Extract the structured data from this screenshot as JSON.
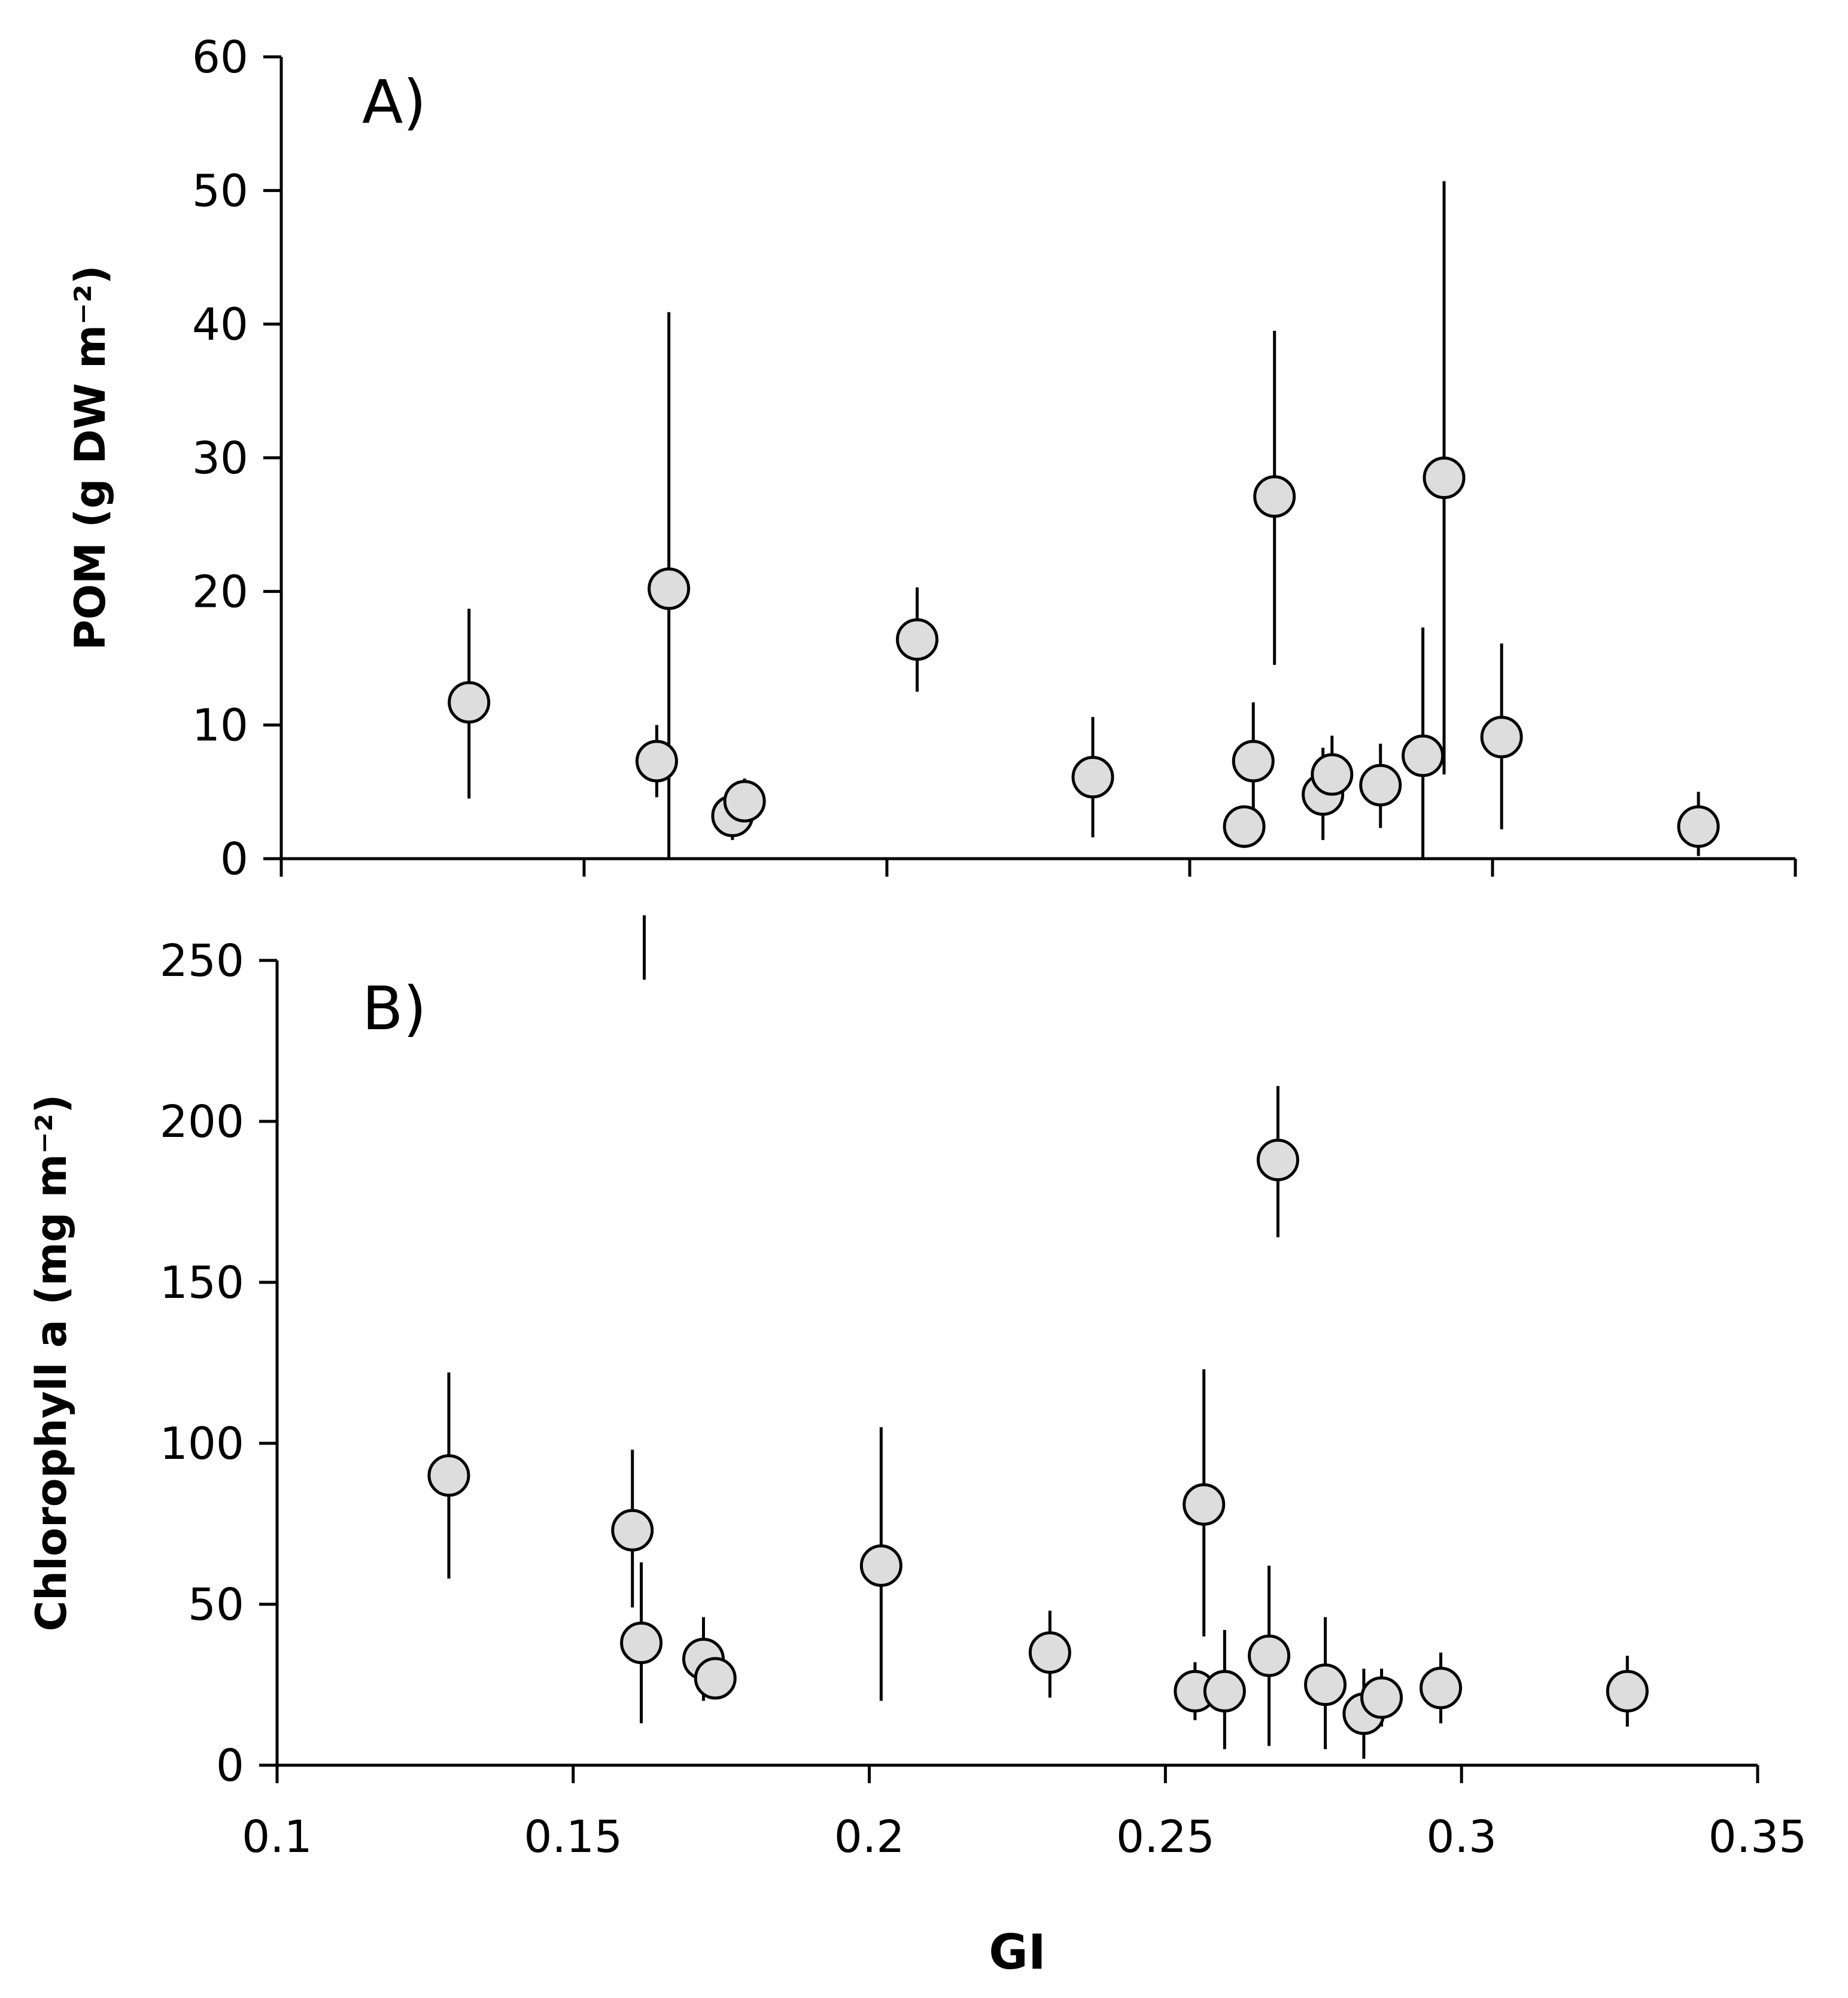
{
  "chart_data": [
    {
      "type": "scatter",
      "panel_label": "A)",
      "xlabel": "",
      "ylabel": "POM (g DW m⁻²)",
      "xlim": [
        0.1,
        0.35
      ],
      "ylim": [
        0,
        60
      ],
      "xticks": [
        0.1,
        0.15,
        0.2,
        0.25,
        0.3,
        0.35
      ],
      "yticks": [
        0,
        10,
        20,
        30,
        40,
        50,
        60
      ],
      "yticklabels": [
        "0",
        "10",
        "20",
        "30",
        "40",
        "50",
        "60"
      ],
      "show_xticklabels": false,
      "grid": false,
      "points": [
        {
          "x": 0.131,
          "y": 11.7,
          "lo": 4.5,
          "hi": 18.7
        },
        {
          "x": 0.162,
          "y": 7.3,
          "lo": 4.6,
          "hi": 10.0
        },
        {
          "x": 0.164,
          "y": 20.2,
          "lo": 0.0,
          "hi": 40.9
        },
        {
          "x": 0.1745,
          "y": 3.2,
          "lo": 1.4,
          "hi": 4.5
        },
        {
          "x": 0.1765,
          "y": 4.3,
          "lo": 3.2,
          "hi": 6.0
        },
        {
          "x": 0.205,
          "y": 16.4,
          "lo": 12.5,
          "hi": 20.3
        },
        {
          "x": 0.234,
          "y": 6.1,
          "lo": 1.6,
          "hi": 10.6
        },
        {
          "x": 0.259,
          "y": 2.4,
          "lo": 0.8,
          "hi": 3.6
        },
        {
          "x": 0.2605,
          "y": 7.3,
          "lo": 3.0,
          "hi": 11.7
        },
        {
          "x": 0.264,
          "y": 27.1,
          "lo": 14.5,
          "hi": 39.5
        },
        {
          "x": 0.272,
          "y": 4.8,
          "lo": 1.4,
          "hi": 8.3
        },
        {
          "x": 0.2735,
          "y": 6.3,
          "lo": 3.5,
          "hi": 9.2
        },
        {
          "x": 0.2815,
          "y": 5.5,
          "lo": 2.3,
          "hi": 8.6
        },
        {
          "x": 0.2885,
          "y": 7.7,
          "lo": 0.0,
          "hi": 17.3
        },
        {
          "x": 0.292,
          "y": 28.5,
          "lo": 6.3,
          "hi": 50.7
        },
        {
          "x": 0.3015,
          "y": 9.1,
          "lo": 2.2,
          "hi": 16.1
        },
        {
          "x": 0.334,
          "y": 2.4,
          "lo": 0.2,
          "hi": 5.0
        }
      ]
    },
    {
      "type": "scatter",
      "panel_label": "B)",
      "xlabel": "GI",
      "ylabel": "Chlorophyll a (mg m⁻²)",
      "xlim": [
        0.1,
        0.35
      ],
      "ylim": [
        0,
        250
      ],
      "xticks": [
        0.1,
        0.15,
        0.2,
        0.25,
        0.3,
        0.35
      ],
      "xticklabels": [
        "0.1",
        "0.15",
        "0.2",
        "0.25",
        "0.3",
        "0.35"
      ],
      "yticks": [
        0,
        50,
        100,
        150,
        200,
        250
      ],
      "yticklabels": [
        "0",
        "50",
        "100",
        "150",
        "200",
        "250"
      ],
      "show_xticklabels": true,
      "grid": false,
      "points": [
        {
          "x": 0.129,
          "y": 90,
          "lo": 58,
          "hi": 122
        },
        {
          "x": 0.16,
          "y": 73,
          "lo": 49,
          "hi": 98
        },
        {
          "x": 0.1615,
          "y": 38,
          "lo": 13,
          "hi": 63
        },
        {
          "x": 0.162,
          "y": null,
          "lo": 244,
          "hi": 264
        },
        {
          "x": 0.172,
          "y": 33,
          "lo": 20,
          "hi": 46
        },
        {
          "x": 0.174,
          "y": 27,
          "lo": 22,
          "hi": 32
        },
        {
          "x": 0.202,
          "y": 62,
          "lo": 20,
          "hi": 105
        },
        {
          "x": 0.2305,
          "y": 35,
          "lo": 21,
          "hi": 48
        },
        {
          "x": 0.255,
          "y": 23,
          "lo": 14,
          "hi": 32
        },
        {
          "x": 0.2565,
          "y": 81,
          "lo": 40,
          "hi": 123
        },
        {
          "x": 0.26,
          "y": 23,
          "lo": 5,
          "hi": 42
        },
        {
          "x": 0.2675,
          "y": 34,
          "lo": 6,
          "hi": 62
        },
        {
          "x": 0.269,
          "y": 188,
          "lo": 164,
          "hi": 211
        },
        {
          "x": 0.277,
          "y": 25,
          "lo": 5,
          "hi": 46
        },
        {
          "x": 0.2835,
          "y": 16,
          "lo": 2,
          "hi": 30
        },
        {
          "x": 0.2865,
          "y": 21,
          "lo": 12,
          "hi": 30
        },
        {
          "x": 0.2965,
          "y": 24,
          "lo": 13,
          "hi": 35
        },
        {
          "x": 0.328,
          "y": 23,
          "lo": 12,
          "hi": 34
        }
      ]
    }
  ]
}
